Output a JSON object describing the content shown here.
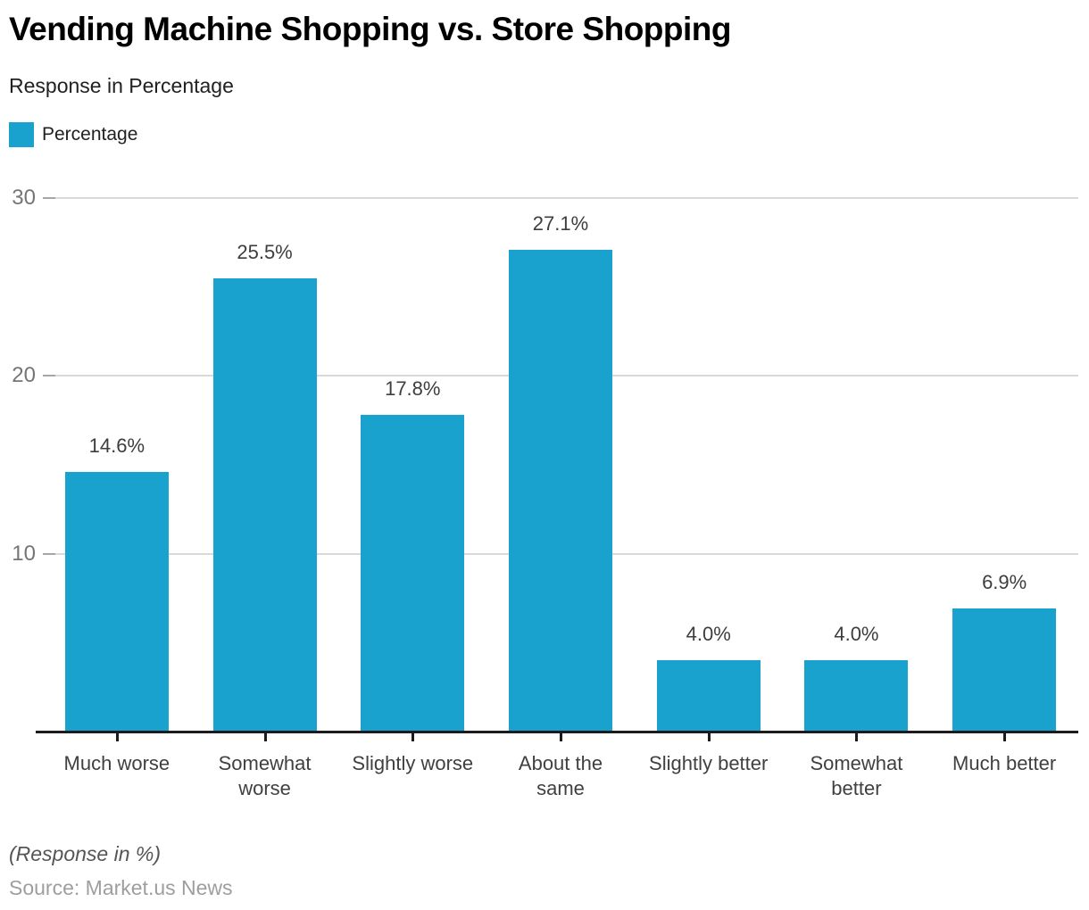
{
  "header": {
    "title": "Vending Machine Shopping vs. Store Shopping",
    "subtitle": "Response in Percentage"
  },
  "legend": {
    "label": "Percentage",
    "swatch_color": "#1AA2CF"
  },
  "chart_data": {
    "type": "bar",
    "title": "Vending Machine Shopping vs. Store Shopping",
    "subtitle": "Response in Percentage",
    "categories": [
      "Much worse",
      "Somewhat worse",
      "Slightly worse",
      "About the same",
      "Slightly better",
      "Somewhat better",
      "Much better"
    ],
    "category_label_lines": [
      [
        "Much worse"
      ],
      [
        "Somewhat",
        "worse"
      ],
      [
        "Slightly worse"
      ],
      [
        "About the",
        "same"
      ],
      [
        "Slightly better"
      ],
      [
        "Somewhat",
        "better"
      ],
      [
        "Much better"
      ]
    ],
    "series": [
      {
        "name": "Percentage",
        "values": [
          14.6,
          25.5,
          17.8,
          27.1,
          4.0,
          4.0,
          6.9
        ]
      }
    ],
    "value_labels": [
      "14.6%",
      "25.5%",
      "17.8%",
      "27.1%",
      "4.0%",
      "4.0%",
      "6.9%"
    ],
    "xlabel": "",
    "ylabel": "",
    "ylim": [
      0,
      30
    ],
    "yticks": [
      10,
      20,
      30
    ],
    "grid": true,
    "legend_position": "top-left",
    "bar_color": "#1AA2CF",
    "gridline_color": "#d9d9d9",
    "axis_color": "#1c1c1c"
  },
  "footer": {
    "note": "(Response in %)",
    "source": "Source: Market.us News"
  }
}
